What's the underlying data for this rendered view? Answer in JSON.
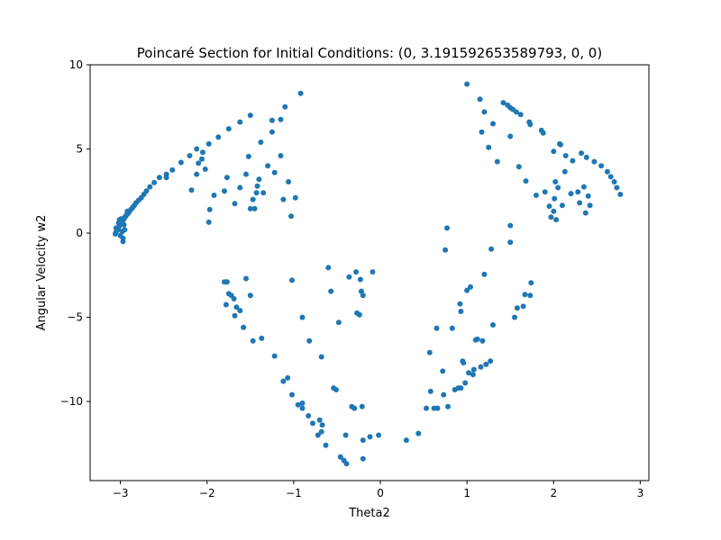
{
  "chart_data": {
    "type": "scatter",
    "title": "Poincaré Section for Initial Conditions: (0, 3.191592653589793, 0, 0)",
    "xlabel": "Theta2",
    "ylabel": "Angular Velocity w2",
    "xlim": [
      -3.35,
      3.1
    ],
    "ylim": [
      -14.7,
      10.0
    ],
    "xticks": [
      -3,
      -2,
      -1,
      0,
      1,
      2,
      3
    ],
    "yticks": [
      -10,
      -5,
      0,
      5,
      10
    ],
    "grid": false,
    "legend": "none",
    "marker_color": "#1f77b4",
    "series": [
      {
        "points": [
          [
            -3.06,
            -0.05
          ],
          [
            -3.05,
            0.05
          ],
          [
            -3.04,
            0.15
          ],
          [
            -3.03,
            0.25
          ],
          [
            -3.02,
            0.35
          ],
          [
            -3.01,
            0.45
          ],
          [
            -3.0,
            0.55
          ],
          [
            -2.99,
            0.62
          ],
          [
            -2.98,
            0.7
          ],
          [
            -2.97,
            0.78
          ],
          [
            -2.96,
            0.85
          ],
          [
            -2.95,
            0.92
          ],
          [
            -2.94,
            1.0
          ],
          [
            -2.93,
            1.08
          ],
          [
            -2.91,
            1.18
          ],
          [
            -2.9,
            1.28
          ],
          [
            -2.88,
            1.4
          ],
          [
            -2.86,
            1.52
          ],
          [
            -2.84,
            1.65
          ],
          [
            -2.82,
            1.8
          ],
          [
            -2.79,
            1.95
          ],
          [
            -2.76,
            2.1
          ],
          [
            -2.73,
            2.3
          ],
          [
            -2.7,
            2.5
          ],
          [
            -2.66,
            2.75
          ],
          [
            -2.61,
            3.0
          ],
          [
            -2.55,
            3.3
          ],
          [
            -2.47,
            3.5
          ],
          [
            -2.4,
            3.75
          ],
          [
            -2.3,
            4.2
          ],
          [
            -2.2,
            4.6
          ],
          [
            -2.12,
            5.0
          ],
          [
            -2.05,
            4.8
          ],
          [
            -1.98,
            5.3
          ],
          [
            -1.87,
            5.7
          ],
          [
            -1.75,
            6.2
          ],
          [
            -1.62,
            6.6
          ],
          [
            -1.5,
            7.0
          ],
          [
            -1.25,
            6.7
          ],
          [
            -1.15,
            6.75
          ],
          [
            -1.1,
            7.5
          ],
          [
            -0.92,
            8.3
          ],
          [
            -3.05,
            0.3
          ],
          [
            -3.02,
            0.6
          ],
          [
            -2.99,
            0.85
          ],
          [
            -2.96,
            0.5
          ],
          [
            -2.97,
            -0.3
          ],
          [
            -2.97,
            -0.5
          ],
          [
            -3.0,
            -0.15
          ],
          [
            -2.98,
            0.1
          ],
          [
            -2.95,
            0.2
          ],
          [
            -3.01,
            0.8
          ],
          [
            -2.92,
            1.3
          ],
          [
            -2.47,
            3.3
          ],
          [
            -2.18,
            2.55
          ],
          [
            -2.12,
            3.5
          ],
          [
            -2.1,
            4.15
          ],
          [
            -2.06,
            4.4
          ],
          [
            -2.02,
            3.8
          ],
          [
            -1.97,
            1.4
          ],
          [
            -1.98,
            0.65
          ],
          [
            -1.92,
            2.25
          ],
          [
            -1.8,
            2.5
          ],
          [
            -1.77,
            3.3
          ],
          [
            -1.68,
            1.75
          ],
          [
            -1.62,
            2.7
          ],
          [
            -1.55,
            3.5
          ],
          [
            -1.52,
            4.55
          ],
          [
            -1.5,
            1.45
          ],
          [
            -1.47,
            2.0
          ],
          [
            -1.45,
            1.45
          ],
          [
            -1.43,
            2.4
          ],
          [
            -1.42,
            2.8
          ],
          [
            -1.4,
            3.2
          ],
          [
            -1.38,
            5.4
          ],
          [
            -1.35,
            2.4
          ],
          [
            -1.3,
            4.0
          ],
          [
            -1.25,
            6.0
          ],
          [
            -1.22,
            3.6
          ],
          [
            -1.15,
            4.6
          ],
          [
            -1.12,
            2.0
          ],
          [
            -1.06,
            3.05
          ],
          [
            -1.03,
            1.0
          ],
          [
            -0.98,
            2.1
          ],
          [
            -1.02,
            -2.8
          ],
          [
            -1.8,
            -2.9
          ],
          [
            -1.77,
            -2.9
          ],
          [
            -1.75,
            -3.6
          ],
          [
            -1.72,
            -3.7
          ],
          [
            -1.69,
            -3.9
          ],
          [
            -1.66,
            -4.4
          ],
          [
            -1.62,
            -4.6
          ],
          [
            -1.55,
            -2.7
          ],
          [
            -1.5,
            -3.7
          ],
          [
            -1.47,
            -6.4
          ],
          [
            -1.37,
            -6.25
          ],
          [
            -1.78,
            -4.25
          ],
          [
            -1.68,
            -4.9
          ],
          [
            -1.58,
            -5.6
          ],
          [
            -1.22,
            -7.3
          ],
          [
            -1.12,
            -8.8
          ],
          [
            -1.07,
            -8.6
          ],
          [
            -1.02,
            -9.6
          ],
          [
            -0.95,
            -10.2
          ],
          [
            -0.9,
            -10.1
          ],
          [
            -0.9,
            -10.4
          ],
          [
            -0.83,
            -10.85
          ],
          [
            -0.78,
            -11.3
          ],
          [
            -0.72,
            -12.0
          ],
          [
            -0.7,
            -11.1
          ],
          [
            -0.68,
            -11.8
          ],
          [
            -0.67,
            -11.4
          ],
          [
            -0.63,
            -12.6
          ],
          [
            -0.6,
            -2.05
          ],
          [
            -0.57,
            -3.45
          ],
          [
            -0.54,
            -9.2
          ],
          [
            -0.51,
            -9.3
          ],
          [
            -0.48,
            -5.3
          ],
          [
            -0.46,
            -13.3
          ],
          [
            -0.42,
            -13.5
          ],
          [
            -0.39,
            -13.7
          ],
          [
            -0.4,
            -12.0
          ],
          [
            -0.36,
            -2.6
          ],
          [
            -0.33,
            -10.3
          ],
          [
            -0.3,
            -10.4
          ],
          [
            -0.28,
            -2.3
          ],
          [
            -0.27,
            -4.75
          ],
          [
            -0.24,
            -4.85
          ],
          [
            -0.23,
            -2.75
          ],
          [
            -0.22,
            -3.45
          ],
          [
            -0.2,
            -3.7
          ],
          [
            -0.21,
            -10.3
          ],
          [
            -0.2,
            -12.3
          ],
          [
            -0.2,
            -13.4
          ],
          [
            -0.12,
            -12.1
          ],
          [
            -0.09,
            -2.3
          ],
          [
            -0.02,
            -12.0
          ],
          [
            -0.9,
            -5.0
          ],
          [
            -0.82,
            -6.4
          ],
          [
            -0.68,
            -7.35
          ],
          [
            0.3,
            -12.3
          ],
          [
            0.44,
            -11.9
          ],
          [
            0.53,
            -10.4
          ],
          [
            0.57,
            -7.1
          ],
          [
            0.58,
            -9.4
          ],
          [
            0.62,
            -10.4
          ],
          [
            0.65,
            -5.65
          ],
          [
            0.66,
            -10.4
          ],
          [
            0.72,
            -8.2
          ],
          [
            0.73,
            -9.6
          ],
          [
            0.75,
            -1.0
          ],
          [
            0.77,
            0.3
          ],
          [
            0.78,
            -10.3
          ],
          [
            0.83,
            -5.65
          ],
          [
            0.86,
            -9.3
          ],
          [
            0.9,
            -9.2
          ],
          [
            0.93,
            -9.2
          ],
          [
            0.92,
            -4.2
          ],
          [
            0.95,
            -7.6
          ],
          [
            0.93,
            -4.65
          ],
          [
            0.96,
            -7.7
          ],
          [
            0.98,
            -8.9
          ],
          [
            1.0,
            -3.4
          ],
          [
            1.02,
            -8.3
          ],
          [
            1.04,
            -3.2
          ],
          [
            1.07,
            -8.4
          ],
          [
            1.1,
            -6.35
          ],
          [
            1.08,
            -8.1
          ],
          [
            1.12,
            -6.3
          ],
          [
            1.16,
            -7.95
          ],
          [
            1.18,
            -6.4
          ],
          [
            1.2,
            -2.45
          ],
          [
            1.22,
            -7.8
          ],
          [
            1.27,
            -7.6
          ],
          [
            1.3,
            -5.45
          ],
          [
            1.28,
            -0.95
          ],
          [
            1.5,
            -0.55
          ],
          [
            1.5,
            0.45
          ],
          [
            1.55,
            -5.0
          ],
          [
            1.58,
            -4.45
          ],
          [
            1.65,
            -4.35
          ],
          [
            1.67,
            -3.65
          ],
          [
            1.73,
            -3.7
          ],
          [
            1.74,
            -2.95
          ],
          [
            1.0,
            8.85
          ],
          [
            1.15,
            7.95
          ],
          [
            1.17,
            6.0
          ],
          [
            1.2,
            7.2
          ],
          [
            1.25,
            5.1
          ],
          [
            1.3,
            6.5
          ],
          [
            1.35,
            4.25
          ],
          [
            1.42,
            7.75
          ],
          [
            1.47,
            7.6
          ],
          [
            1.5,
            7.45
          ],
          [
            1.53,
            7.35
          ],
          [
            1.57,
            7.2
          ],
          [
            1.62,
            7.05
          ],
          [
            1.5,
            5.75
          ],
          [
            1.6,
            3.95
          ],
          [
            1.68,
            3.1
          ],
          [
            1.72,
            6.6
          ],
          [
            1.73,
            6.45
          ],
          [
            1.8,
            2.25
          ],
          [
            1.86,
            6.1
          ],
          [
            1.88,
            5.95
          ],
          [
            1.9,
            2.45
          ],
          [
            1.95,
            1.6
          ],
          [
            1.97,
            0.95
          ],
          [
            2.0,
            1.3
          ],
          [
            2.0,
            4.85
          ],
          [
            2.01,
            2.05
          ],
          [
            2.02,
            3.05
          ],
          [
            2.03,
            0.8
          ],
          [
            2.05,
            2.7
          ],
          [
            2.07,
            5.3
          ],
          [
            2.08,
            5.25
          ],
          [
            2.1,
            1.65
          ],
          [
            2.13,
            3.65
          ],
          [
            2.14,
            4.6
          ],
          [
            2.2,
            2.35
          ],
          [
            2.22,
            4.3
          ],
          [
            2.28,
            2.45
          ],
          [
            2.3,
            1.8
          ],
          [
            2.32,
            4.75
          ],
          [
            2.35,
            2.75
          ],
          [
            2.37,
            1.2
          ],
          [
            2.38,
            4.5
          ],
          [
            2.4,
            2.2
          ],
          [
            2.42,
            1.65
          ],
          [
            2.47,
            4.25
          ],
          [
            2.55,
            4.0
          ],
          [
            2.62,
            3.65
          ],
          [
            2.66,
            3.35
          ],
          [
            2.7,
            3.05
          ],
          [
            2.73,
            2.7
          ],
          [
            2.77,
            2.3
          ]
        ]
      }
    ]
  }
}
